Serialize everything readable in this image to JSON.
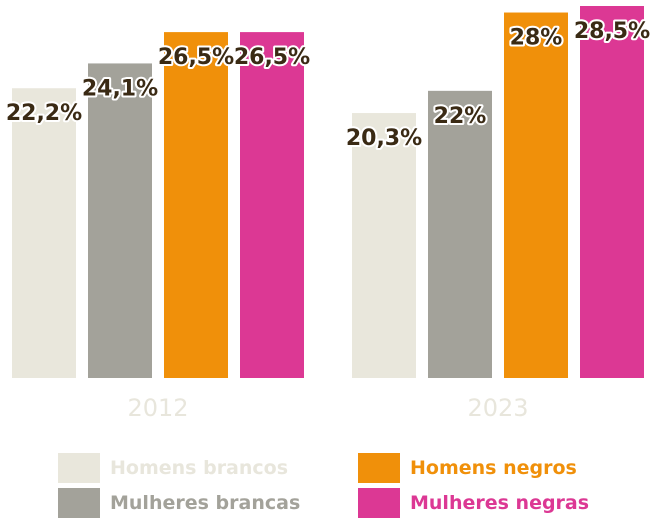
{
  "chart_data": {
    "type": "bar",
    "categories": [
      "2012",
      "2023"
    ],
    "series": [
      {
        "name": "Homens brancos",
        "color": "#e9e7dc",
        "values": [
          22.2,
          20.3
        ],
        "labels": [
          "22,2%",
          "20,3%"
        ]
      },
      {
        "name": "Mulheres brancas",
        "color": "#a3a29a",
        "values": [
          24.1,
          22.0
        ],
        "labels": [
          "24,1%",
          "22%"
        ]
      },
      {
        "name": "Homens negros",
        "color": "#f0900a",
        "values": [
          26.5,
          28.0
        ],
        "labels": [
          "26,5%",
          "28%"
        ]
      },
      {
        "name": "Mulheres negras",
        "color": "#dc3894",
        "values": [
          26.5,
          28.5
        ],
        "labels": [
          "26,5%",
          "28,5%"
        ]
      }
    ],
    "ylim": [
      0,
      28.5
    ],
    "grid": false,
    "legend_position": "bottom"
  },
  "legend": {
    "items": [
      {
        "label": "Homens brancos",
        "color": "#e9e7dc",
        "text_color": "#e8e6dc"
      },
      {
        "label": "Mulheres brancas",
        "color": "#a3a29a",
        "text_color": "#a3a29a"
      },
      {
        "label": "Homens negros",
        "color": "#f0900a",
        "text_color": "#f0900a"
      },
      {
        "label": "Mulheres negras",
        "color": "#dc3894",
        "text_color": "#dc3894"
      }
    ]
  }
}
